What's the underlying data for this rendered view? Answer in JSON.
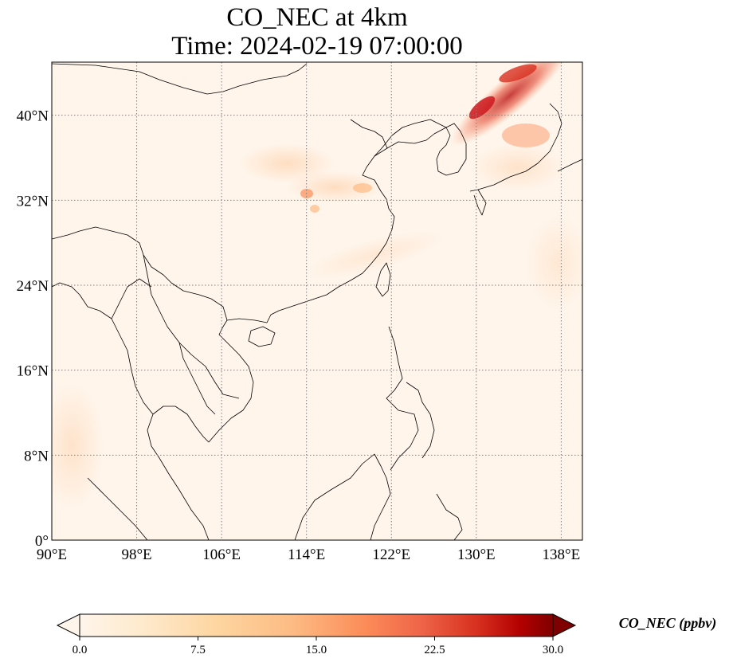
{
  "title_line1": "CO_NEC at 4km",
  "title_line2": "Time: 2024-02-19 07:00:00",
  "map": {
    "lon_range": [
      90,
      140
    ],
    "lat_range": [
      0,
      45
    ],
    "lon_ticks": [
      "90°E",
      "98°E",
      "106°E",
      "114°E",
      "122°E",
      "130°E",
      "138°E"
    ],
    "lat_ticks": [
      "0°",
      "8°N",
      "16°N",
      "24°N",
      "32°N",
      "40°N"
    ],
    "lon_tick_values": [
      90,
      98,
      106,
      114,
      122,
      130,
      138
    ],
    "lat_tick_values": [
      0,
      8,
      16,
      24,
      32,
      40
    ],
    "grid_style": "dotted",
    "background_color": "#fff5eb",
    "coastline_color": "#000000",
    "colormap": "OrRd"
  },
  "colorbar": {
    "label": "CO_NEC (ppbv)",
    "ticks": [
      "0.0",
      "7.5",
      "15.0",
      "22.5",
      "30.0"
    ],
    "tick_values": [
      0,
      7.5,
      15,
      22.5,
      30
    ],
    "range": [
      0,
      30
    ],
    "extend": "both",
    "colors": [
      "#fff5eb",
      "#fdd49e",
      "#fdbb84",
      "#fc8d59",
      "#ef6548",
      "#d7301f",
      "#b30000",
      "#7f0000"
    ]
  }
}
